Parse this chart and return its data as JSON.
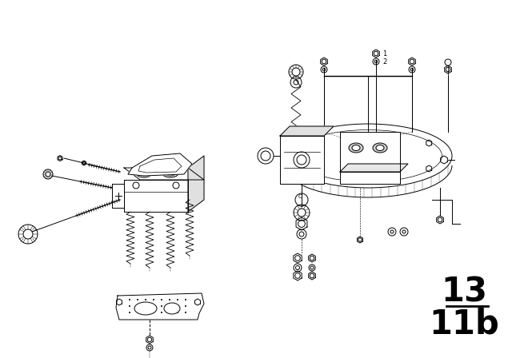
{
  "bg_color": "#ffffff",
  "line_color": "#000000",
  "fig_width": 6.4,
  "fig_height": 4.48,
  "dpi": 100,
  "page_number": "13",
  "page_sub": "11b"
}
